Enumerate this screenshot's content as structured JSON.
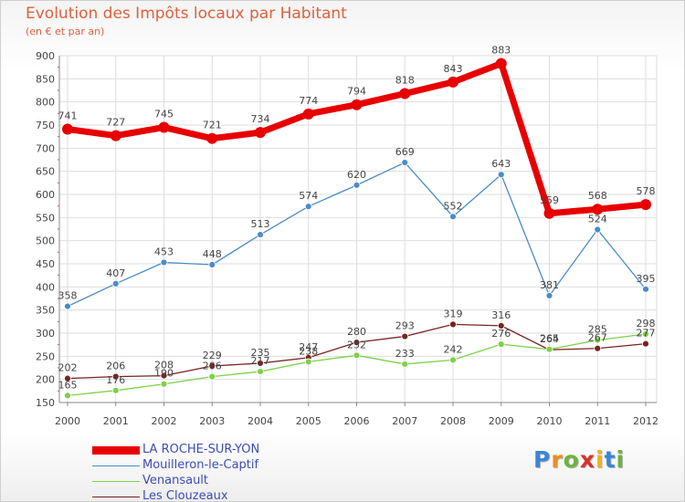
{
  "chart_data": {
    "type": "line",
    "title": "Evolution des Impôts locaux par Habitant",
    "subtitle": "(en € et par an)",
    "x": [
      "2000",
      "2001",
      "2002",
      "2003",
      "2004",
      "2005",
      "2006",
      "2007",
      "2008",
      "2009",
      "2010",
      "2011",
      "2012"
    ],
    "ylim": [
      150,
      900
    ],
    "yticks": [
      150,
      200,
      250,
      300,
      350,
      400,
      450,
      500,
      550,
      600,
      650,
      700,
      750,
      800,
      850,
      900
    ],
    "grid": true,
    "legend_position": "bottom-left",
    "series": [
      {
        "name": "LA ROCHE-SUR-YON",
        "color": "#e80000",
        "values": [
          741,
          727,
          745,
          721,
          734,
          774,
          794,
          818,
          843,
          883,
          559,
          568,
          578
        ]
      },
      {
        "name": "Mouilleron-le-Captif",
        "color": "#4a8cc8",
        "values": [
          358,
          407,
          453,
          448,
          513,
          574,
          620,
          669,
          552,
          643,
          381,
          524,
          395
        ]
      },
      {
        "name": "Venansault",
        "color": "#7ed04a",
        "values": [
          165,
          176,
          190,
          206,
          217,
          238,
          252,
          233,
          242,
          276,
          265,
          285,
          298
        ]
      },
      {
        "name": "Les Clouzeaux",
        "color": "#7a2222",
        "values": [
          202,
          206,
          208,
          229,
          235,
          247,
          280,
          293,
          319,
          316,
          264,
          267,
          277
        ]
      }
    ]
  },
  "logo": {
    "letters": [
      "P",
      "r",
      "o",
      "x",
      "i",
      "t",
      "i"
    ],
    "colors": [
      "#3a86d6",
      "#f08c1e",
      "#6cb33f",
      "#d9312b",
      "#f0b21e",
      "#3a86d6",
      "#6cb33f"
    ]
  }
}
